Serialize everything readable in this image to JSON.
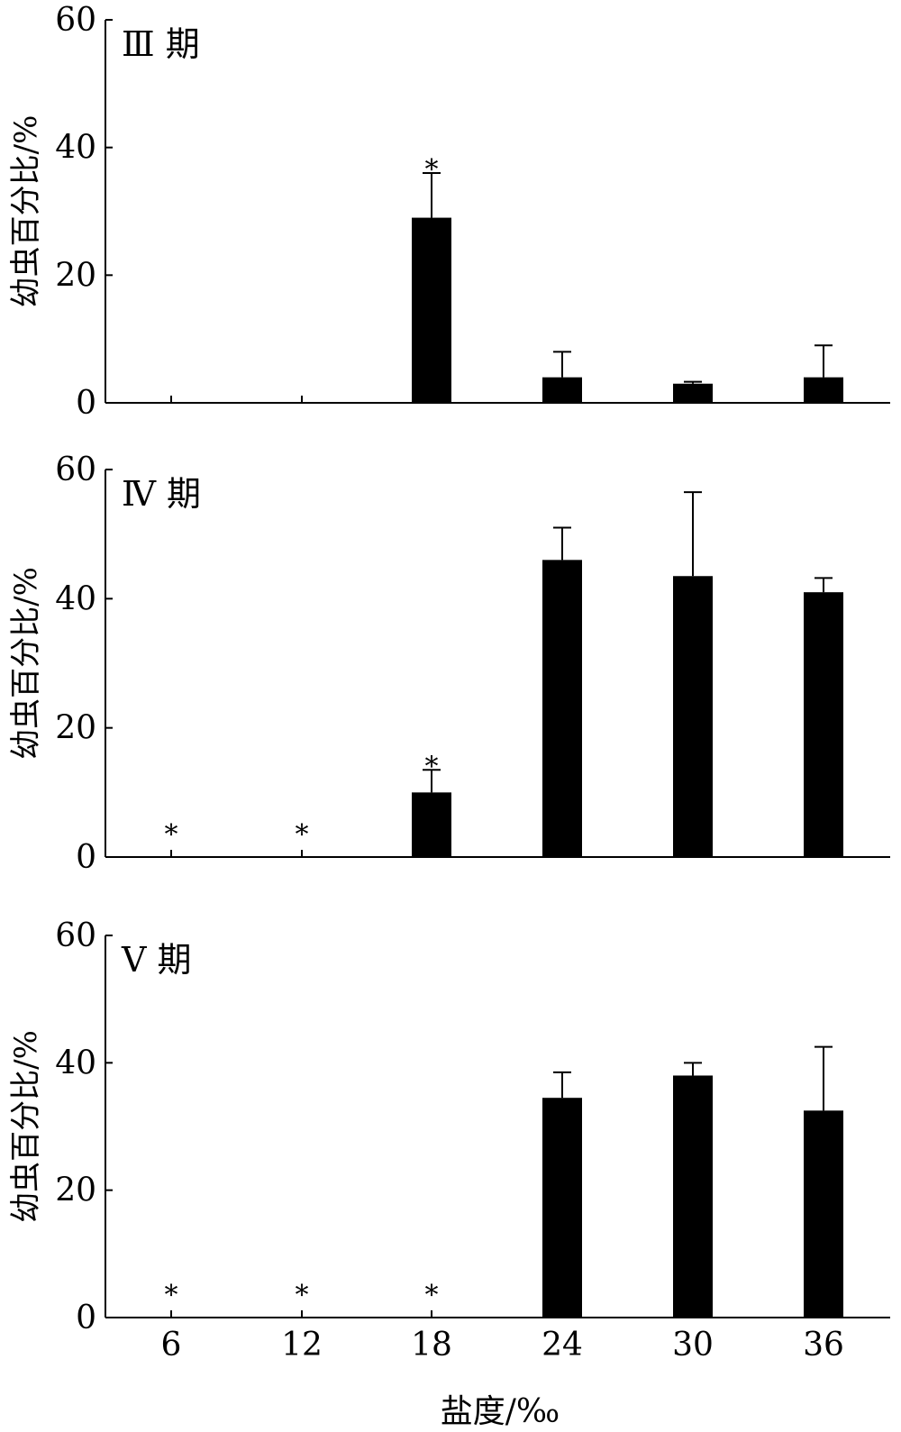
{
  "xlabel": "盐度/‰",
  "chart_data": [
    {
      "type": "bar",
      "panel_label": "Ⅲ 期",
      "ylabel": "幼虫百分比/%",
      "ylim": [
        0,
        60
      ],
      "yticks": [
        "0",
        "20",
        "40",
        "60"
      ],
      "categories": [
        "6",
        "12",
        "18",
        "24",
        "30",
        "36"
      ],
      "values": [
        0,
        0,
        29,
        4,
        3,
        4
      ],
      "errors": [
        0,
        0,
        7,
        4,
        0.3,
        5
      ],
      "markers": [
        "",
        "",
        "*",
        "",
        "",
        ""
      ],
      "show_x_tick_labels": false
    },
    {
      "type": "bar",
      "panel_label": "Ⅳ 期",
      "ylabel": "幼虫百分比/%",
      "ylim": [
        0,
        60
      ],
      "yticks": [
        "0",
        "20",
        "40",
        "60"
      ],
      "categories": [
        "6",
        "12",
        "18",
        "24",
        "30",
        "36"
      ],
      "values": [
        0,
        0,
        10,
        46,
        43.5,
        41
      ],
      "errors": [
        0,
        0,
        3.5,
        5,
        13,
        2.2
      ],
      "markers": [
        "*",
        "*",
        "*",
        "",
        "",
        ""
      ],
      "show_x_tick_labels": false
    },
    {
      "type": "bar",
      "panel_label": "Ⅴ 期",
      "ylabel": "幼虫百分比/%",
      "ylim": [
        0,
        60
      ],
      "yticks": [
        "0",
        "20",
        "40",
        "60"
      ],
      "categories": [
        "6",
        "12",
        "18",
        "24",
        "30",
        "36"
      ],
      "values": [
        0,
        0,
        0,
        34.5,
        38,
        32.5
      ],
      "errors": [
        0,
        0,
        0,
        4,
        2,
        10
      ],
      "markers": [
        "*",
        "*",
        "*",
        "",
        "",
        ""
      ],
      "show_x_tick_labels": true
    }
  ]
}
